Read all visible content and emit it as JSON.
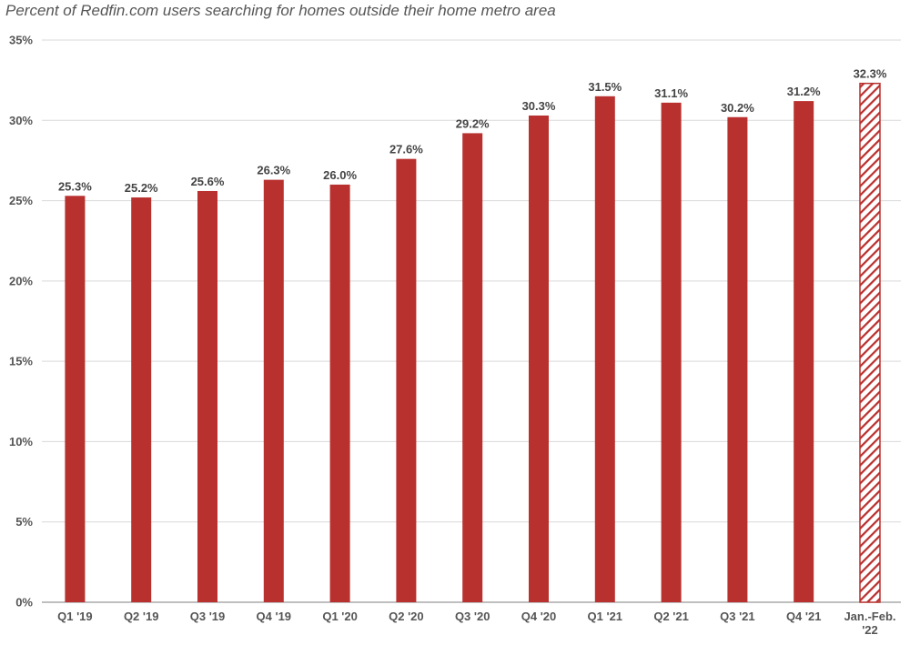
{
  "chart_data": {
    "type": "bar",
    "title": "Percent of Redfin.com users searching for homes outside their home metro area",
    "xlabel": "",
    "ylabel": "",
    "ylim": [
      0,
      35
    ],
    "yticks": [
      0,
      5,
      10,
      15,
      20,
      25,
      30,
      35
    ],
    "ytick_labels": [
      "0%",
      "5%",
      "10%",
      "15%",
      "20%",
      "25%",
      "30%",
      "35%"
    ],
    "grid": true,
    "categories": [
      "Q1 '19",
      "Q2 '19",
      "Q3 '19",
      "Q4 '19",
      "Q1 '20",
      "Q2 '20",
      "Q3 '20",
      "Q4 '20",
      "Q1 '21",
      "Q2 '21",
      "Q3 '21",
      "Q4 '21",
      "Jan.-Feb. '22"
    ],
    "values": [
      25.3,
      25.2,
      25.6,
      26.3,
      26.0,
      27.6,
      29.2,
      30.3,
      31.5,
      31.1,
      30.2,
      31.2,
      32.3
    ],
    "data_labels": [
      "25.3%",
      "25.2%",
      "25.6%",
      "26.3%",
      "26.0%",
      "27.6%",
      "29.2%",
      "30.3%",
      "31.5%",
      "31.1%",
      "30.2%",
      "31.2%",
      "32.3%"
    ],
    "hatched": [
      false,
      false,
      false,
      false,
      false,
      false,
      false,
      false,
      false,
      false,
      false,
      false,
      true
    ],
    "colors": {
      "bar": "#b8312f",
      "grid": "#d9d9d9",
      "axis": "#999999"
    }
  }
}
